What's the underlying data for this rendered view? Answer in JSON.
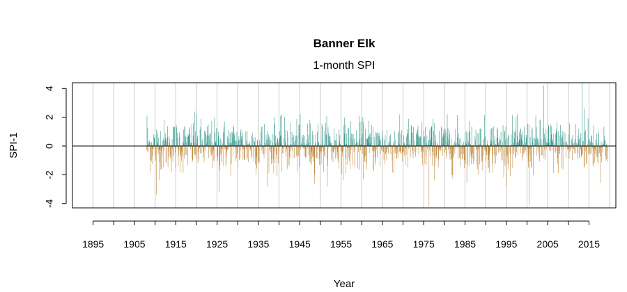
{
  "chart_data": {
    "type": "bar",
    "title": "Banner Elk",
    "subtitle": "1-month SPI",
    "xlabel": "Year",
    "ylabel": "SPI-1",
    "x_ticks": [
      1895,
      1905,
      1915,
      1925,
      1935,
      1945,
      1955,
      1965,
      1975,
      1985,
      1995,
      2005,
      2015
    ],
    "y_ticks": [
      -4,
      -2,
      0,
      2,
      4
    ],
    "xlim": [
      1890,
      2021.5
    ],
    "ylim": [
      -4.3,
      4.4
    ],
    "grid_x": [
      1895,
      1900,
      1905,
      1910,
      1915,
      1920,
      1925,
      1930,
      1935,
      1940,
      1945,
      1950,
      1955,
      1960,
      1965,
      1970,
      1975,
      1980,
      1985,
      1990,
      1995,
      2000,
      2005,
      2010,
      2015,
      2020
    ],
    "data_start_year": 1907.9,
    "data_end_year": 2019.5,
    "positive_color": "#3a9a8e",
    "negative_color": "#c08a40",
    "notable_values": [
      {
        "year": 1908.0,
        "value": 2.1
      },
      {
        "year": 1910.2,
        "value": -3.4
      },
      {
        "year": 1919.5,
        "value": 2.4
      },
      {
        "year": 1925.5,
        "value": -3.2
      },
      {
        "year": 1976.2,
        "value": -4.2
      },
      {
        "year": 2000.5,
        "value": -4.1
      },
      {
        "year": 2004.0,
        "value": 4.2
      },
      {
        "year": 2013.3,
        "value": 4.4
      },
      {
        "year": 2013.8,
        "value": 2.6
      }
    ]
  }
}
